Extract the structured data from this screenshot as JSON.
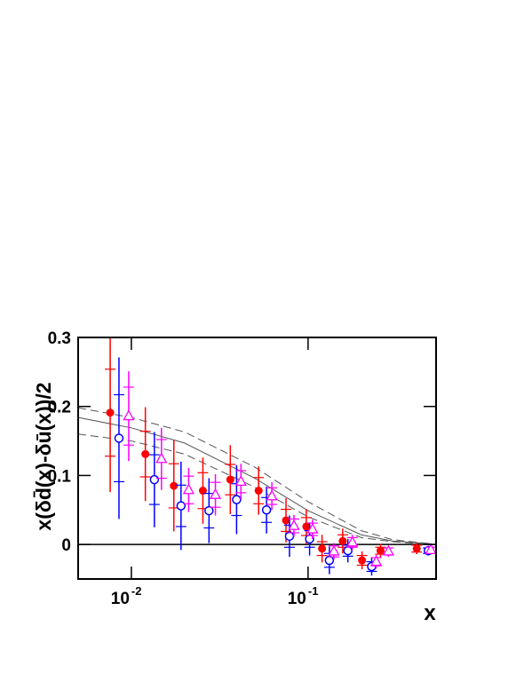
{
  "chart_data": {
    "type": "scatter",
    "ylabel": "x(δd̄(x)-δū(x))/2",
    "xlabel": "x",
    "xscale": "log",
    "xlim": [
      0.005,
      0.53
    ],
    "ylim": [
      -0.05,
      0.3
    ],
    "xticks": [
      {
        "value": 0.01,
        "label": "10",
        "exponent": "-2"
      },
      {
        "value": 0.1,
        "label": "10",
        "exponent": "-1"
      }
    ],
    "yticks": [
      0,
      0.1,
      0.2,
      0.3
    ],
    "zero_line": true,
    "series": [
      {
        "color": "#ff0000",
        "marker": "filled-circle",
        "x": [
          0.00759,
          0.012,
          0.0174,
          0.0254,
          0.0363,
          0.0525,
          0.075,
          0.0977,
          0.12,
          0.157,
          0.202,
          0.257,
          0.412
        ],
        "values": [
          0.191,
          0.131,
          0.085,
          0.078,
          0.094,
          0.078,
          0.035,
          0.026,
          -0.006,
          0.005,
          -0.023,
          -0.009,
          -0.006
        ],
        "errors": [
          0.115,
          0.068,
          0.066,
          0.048,
          0.05,
          0.035,
          0.032,
          0.025,
          0.02,
          0.018,
          0.013,
          0.01,
          0.008
        ],
        "stat_errors": [
          0.063,
          0.033,
          0.032,
          0.026,
          0.022,
          0.019,
          0.016,
          0.013,
          0.01,
          0.009,
          0.007,
          0.005,
          0.005
        ]
      },
      {
        "color": "#0000ff",
        "marker": "open-circle",
        "x": [
          0.00851,
          0.0135,
          0.0191,
          0.0275,
          0.0394,
          0.0582,
          0.0785,
          0.102,
          0.132,
          0.168,
          0.229,
          0.479
        ],
        "values": [
          0.154,
          0.094,
          0.056,
          0.049,
          0.065,
          0.05,
          0.012,
          0.008,
          -0.023,
          -0.009,
          -0.032,
          -0.009
        ],
        "errors": [
          0.117,
          0.069,
          0.064,
          0.047,
          0.05,
          0.034,
          0.03,
          0.024,
          0.02,
          0.017,
          0.013,
          0.007
        ],
        "stat_errors": [
          0.063,
          0.036,
          0.03,
          0.025,
          0.023,
          0.018,
          0.016,
          0.012,
          0.01,
          0.008,
          0.007,
          0.004
        ]
      },
      {
        "color": "#ff00ff",
        "marker": "open-triangle",
        "x": [
          0.00966,
          0.0148,
          0.0211,
          0.0299,
          0.0417,
          0.0624,
          0.0832,
          0.106,
          0.14,
          0.178,
          0.243,
          0.285,
          0.495
        ],
        "values": [
          0.186,
          0.124,
          0.079,
          0.072,
          0.091,
          0.07,
          0.027,
          0.022,
          -0.01,
          0.003,
          -0.025,
          -0.01,
          -0.008
        ],
        "errors": [
          0.065,
          0.045,
          0.032,
          0.03,
          0.026,
          0.02,
          0.016,
          0.014,
          0.012,
          0.011,
          0.01,
          0.008,
          0.006
        ],
        "stat_errors": [
          0.042,
          0.028,
          0.02,
          0.018,
          0.016,
          0.012,
          0.01,
          0.009,
          0.008,
          0.007,
          0.006,
          0.005,
          0.004
        ]
      }
    ],
    "curves": [
      {
        "color": "#555555",
        "dash": false,
        "x": [
          0.005,
          0.01,
          0.02,
          0.05,
          0.1,
          0.2,
          0.3,
          0.5
        ],
        "values": [
          0.184,
          0.169,
          0.147,
          0.096,
          0.049,
          0.014,
          0.005,
          0.001
        ]
      },
      {
        "color": "#555555",
        "dash": true,
        "x": [
          0.005,
          0.01,
          0.02,
          0.05,
          0.1,
          0.2,
          0.3,
          0.5
        ],
        "values": [
          0.198,
          0.184,
          0.163,
          0.112,
          0.062,
          0.02,
          0.007,
          0.001
        ]
      },
      {
        "color": "#555555",
        "dash": true,
        "x": [
          0.005,
          0.01,
          0.02,
          0.05,
          0.1,
          0.2,
          0.3,
          0.5
        ],
        "values": [
          0.16,
          0.15,
          0.131,
          0.083,
          0.04,
          0.01,
          0.004,
          0.0
        ]
      }
    ]
  }
}
